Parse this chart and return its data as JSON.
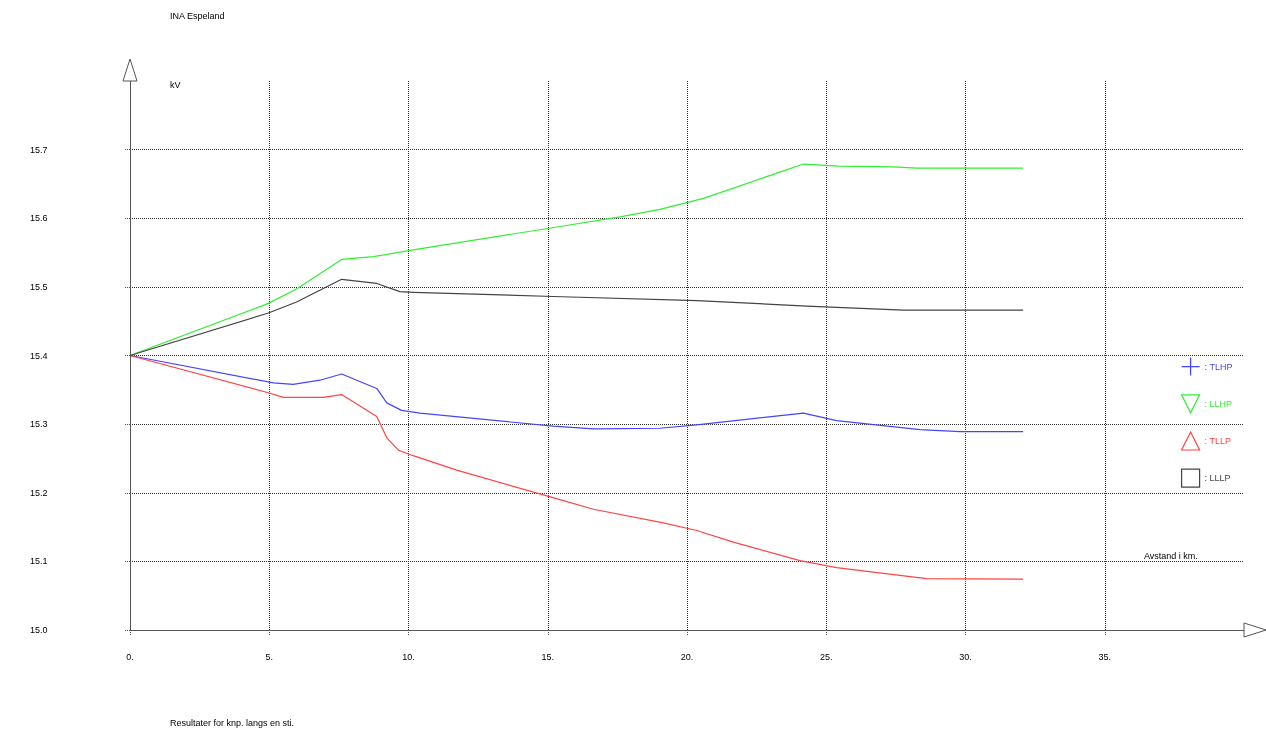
{
  "chart_data": {
    "type": "line",
    "title": "INA Espeland",
    "xlabel": "Avstand i km.",
    "ylabel": "kV",
    "annotations": [
      "Resultater for knp. langs en sti."
    ],
    "xlim": [
      0,
      40
    ],
    "ylim": [
      15.0,
      15.8
    ],
    "xticks": [
      {
        "value": 0,
        "label": "0."
      },
      {
        "value": 5,
        "label": "5."
      },
      {
        "value": 10,
        "label": "10."
      },
      {
        "value": 15,
        "label": "15."
      },
      {
        "value": 20,
        "label": "20."
      },
      {
        "value": 25,
        "label": "25."
      },
      {
        "value": 30,
        "label": "30."
      },
      {
        "value": 35,
        "label": "35."
      }
    ],
    "yticks": [
      {
        "value": 15.0,
        "label": "15.0"
      },
      15.1,
      15.2,
      15.3,
      15.4,
      15.5,
      15.6,
      15.7
    ],
    "grid": true,
    "legend": "right",
    "line_style": "solid",
    "series": [
      {
        "name": ": TLHP",
        "color": "#4444ff",
        "x": [
          0,
          5.15,
          5.86,
          6.82,
          7.6,
          8.86,
          9.22,
          9.75,
          10.41,
          15.2,
          16.64,
          19.03,
          20.35,
          24.18,
          25.37,
          28.37,
          29.8,
          32.07
        ],
        "values": [
          15.4,
          15.36,
          15.358,
          15.364,
          15.373,
          15.352,
          15.331,
          15.32,
          15.316,
          15.297,
          15.293,
          15.294,
          15.299,
          15.316,
          15.305,
          15.292,
          15.289,
          15.289
        ]
      },
      {
        "name": ": LLHP",
        "color": "#33ee33",
        "x": [
          0,
          4.97,
          5.98,
          7.6,
          8.74,
          10.17,
          15.44,
          17.6,
          19.03,
          20.59,
          24.18,
          25.43,
          27.41,
          28.25,
          32.07
        ],
        "values": [
          15.4,
          15.476,
          15.497,
          15.54,
          15.544,
          15.554,
          15.588,
          15.602,
          15.613,
          15.629,
          15.679,
          15.676,
          15.675,
          15.673,
          15.673
        ]
      },
      {
        "name": ": TLLP",
        "color": "#ff4444",
        "x": [
          0,
          5.03,
          5.5,
          6.94,
          7.6,
          8.86,
          9.22,
          9.64,
          10.17,
          11.73,
          15.44,
          16.64,
          19.15,
          20.35,
          21.66,
          24.06,
          25.37,
          28.6,
          32.07
        ],
        "values": [
          15.4,
          15.345,
          15.339,
          15.339,
          15.343,
          15.311,
          15.28,
          15.262,
          15.254,
          15.233,
          15.19,
          15.176,
          15.156,
          15.145,
          15.128,
          15.101,
          15.091,
          15.075,
          15.074
        ]
      },
      {
        "name": ": LLLP",
        "color": "#444444",
        "x": [
          0,
          4.97,
          5.98,
          7.6,
          8.86,
          9.69,
          10.17,
          15.2,
          20.35,
          24.3,
          27.77,
          32.07
        ],
        "values": [
          15.4,
          15.462,
          15.478,
          15.511,
          15.505,
          15.493,
          15.492,
          15.486,
          15.48,
          15.472,
          15.466,
          15.466
        ]
      }
    ]
  }
}
